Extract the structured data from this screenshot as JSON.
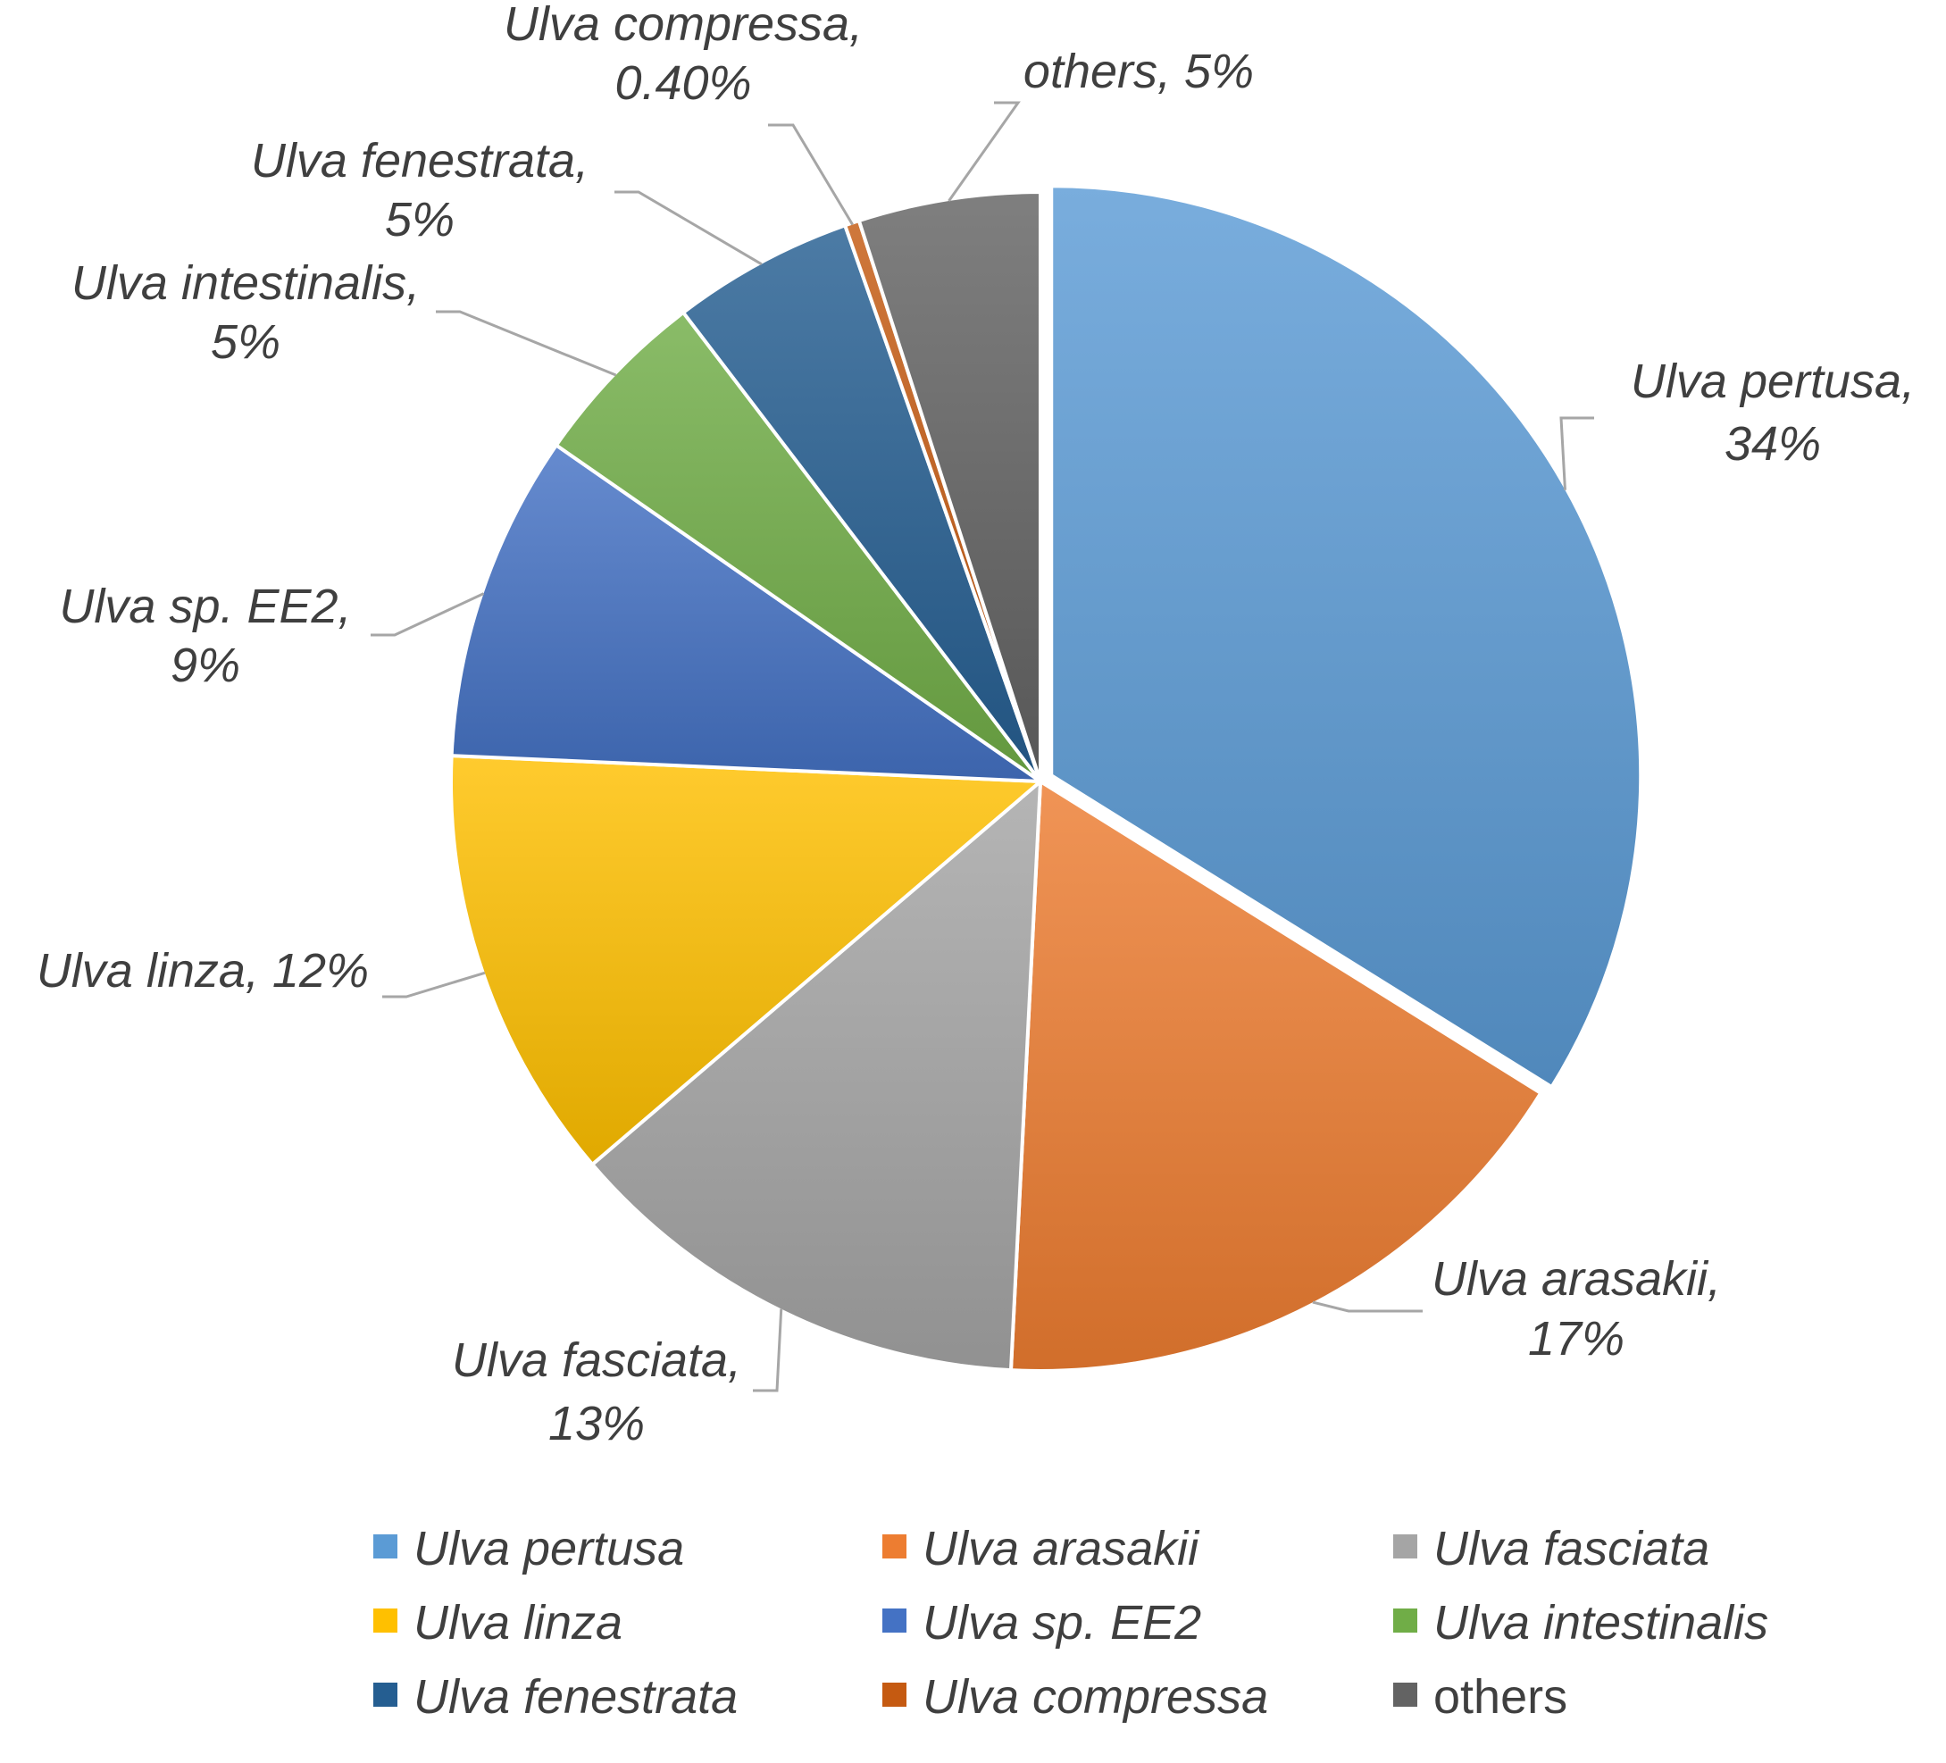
{
  "chart_data": {
    "type": "pie",
    "title": "",
    "slices": [
      {
        "name": "Ulva pertusa",
        "label_name": "Ulva pertusa,",
        "value": 34,
        "label_value": "34%",
        "color": "#5b9bd5",
        "italic": true
      },
      {
        "name": "Ulva arasakii",
        "label_name": "Ulva arasakii,",
        "value": 17,
        "label_value": "17%",
        "color": "#ed7d31",
        "italic": true
      },
      {
        "name": "Ulva fasciata",
        "label_name": "Ulva fasciata,",
        "value": 13,
        "label_value": "13%",
        "color": "#a5a5a5",
        "italic": true
      },
      {
        "name": "Ulva linza",
        "label_name": "Ulva linza, 12%",
        "value": 12,
        "label_value": "",
        "color": "#ffc000",
        "italic": true
      },
      {
        "name": "Ulva sp. EE2",
        "label_name": "Ulva sp. EE2,",
        "value": 9,
        "label_value": "9%",
        "color": "#4472c4",
        "italic": true
      },
      {
        "name": "Ulva intestinalis",
        "label_name": "Ulva intestinalis,",
        "value": 5,
        "label_value": "5%",
        "color": "#70ad47",
        "italic": true
      },
      {
        "name": "Ulva fenestrata",
        "label_name": "Ulva fenestrata,",
        "value": 5,
        "label_value": "5%",
        "color": "#255e91",
        "italic": true
      },
      {
        "name": "Ulva compressa",
        "label_name": "Ulva compressa,",
        "value": 0.4,
        "label_value": "0.40%",
        "color": "#c55a11",
        "italic": true
      },
      {
        "name": "others",
        "label_name": "others, 5%",
        "value": 5,
        "label_value": "",
        "color": "#636363",
        "italic": false
      }
    ],
    "legend_placement": "bottom"
  }
}
